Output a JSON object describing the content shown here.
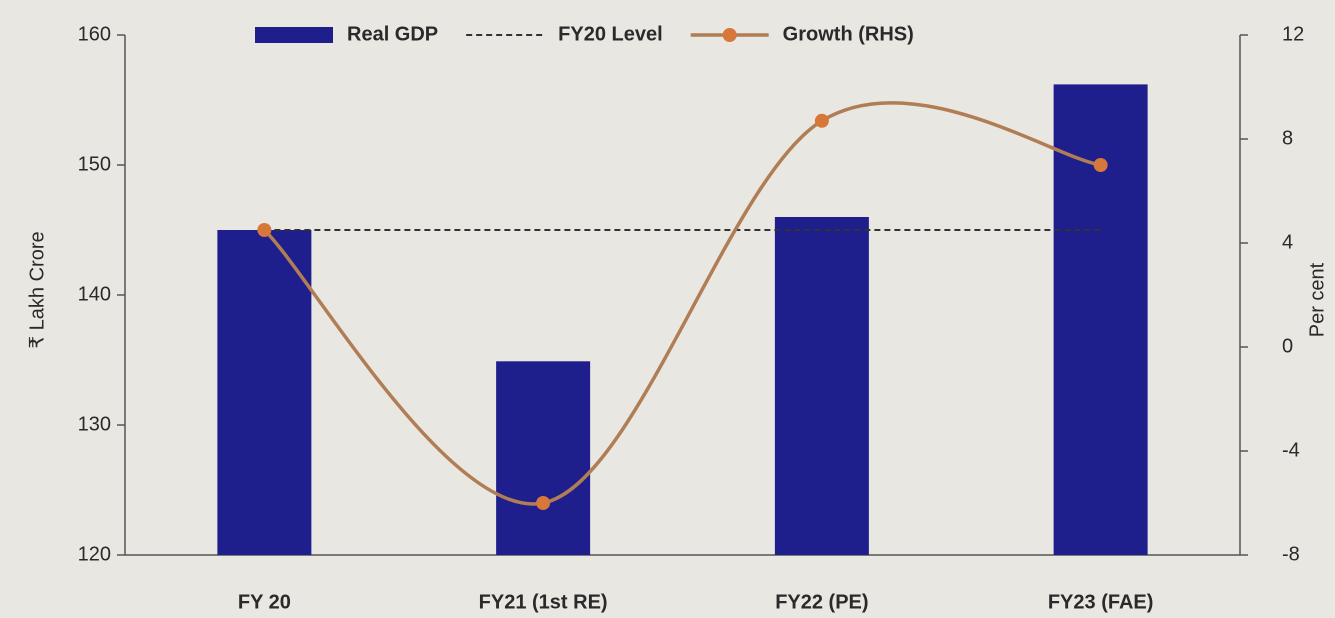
{
  "chart_data": {
    "type": "bar_line",
    "categories": [
      "FY 20",
      "FY21 (1st RE)",
      "FY22 (PE)",
      "FY23 (FAE)"
    ],
    "series": [
      {
        "name": "Real GDP",
        "type": "bar",
        "color": "#1e1f8c",
        "values": [
          145,
          134.9,
          146,
          156.2
        ]
      },
      {
        "name": "FY20 Level",
        "type": "dashed",
        "color": "#333333",
        "values": [
          145,
          145,
          145,
          145
        ]
      },
      {
        "name": "Growth (RHS)",
        "type": "line",
        "axis": "y2",
        "color": "#b07d55",
        "marker_color": "#d8773a",
        "values": [
          4.5,
          -6.0,
          8.7,
          7.0
        ]
      }
    ],
    "ylabel": "₹ Lakh Crore",
    "y2label": "Per cent",
    "ylim": [
      120,
      160
    ],
    "yticks": [
      120,
      130,
      140,
      150,
      160
    ],
    "y2lim": [
      -8,
      12
    ],
    "y2ticks": [
      -8,
      -4,
      0,
      4,
      8,
      12
    ],
    "legend": "top"
  }
}
